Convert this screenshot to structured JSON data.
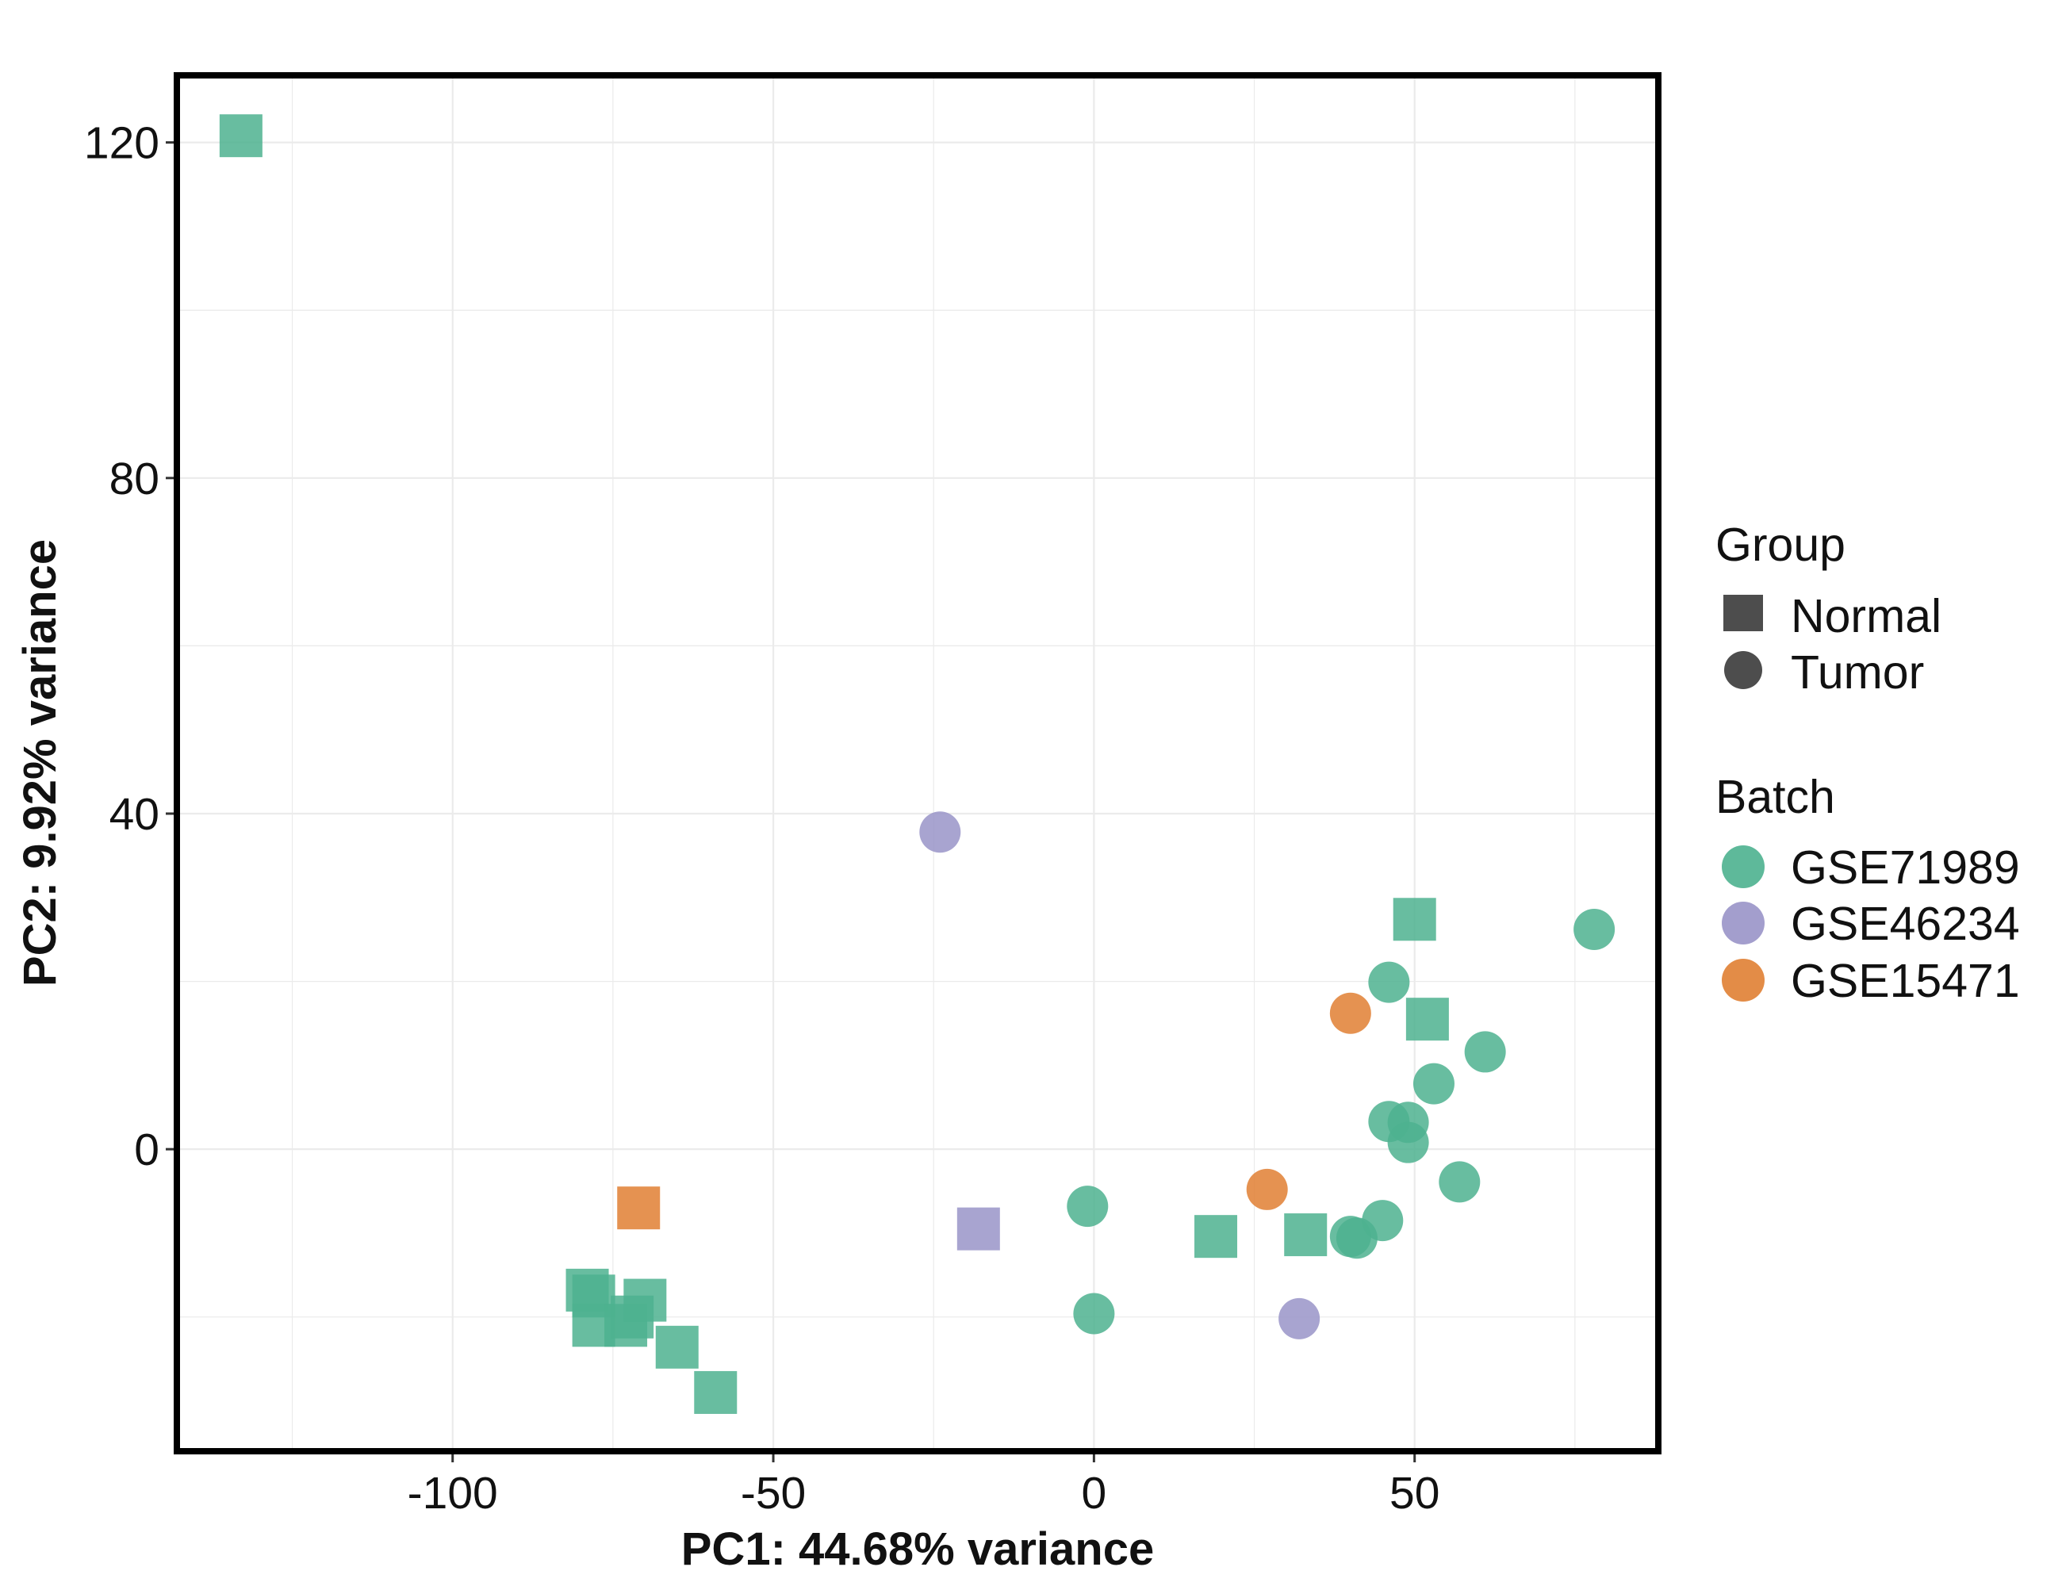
{
  "chart_data": {
    "type": "scatter",
    "title": "",
    "xlabel": "PC1: 44.68% variance",
    "ylabel": "PC2: 9.92% variance",
    "xlim": [
      -143,
      88
    ],
    "ylim": [
      -36,
      128
    ],
    "xticks": [
      -100,
      -50,
      0,
      50
    ],
    "yticks": [
      0,
      40,
      80,
      120
    ],
    "grid": true,
    "legend": {
      "placement": "right",
      "group": {
        "title": "Group",
        "items": [
          {
            "label": "Normal",
            "shape": "square"
          },
          {
            "label": "Tumor",
            "shape": "circle"
          }
        ]
      },
      "batch": {
        "title": "Batch",
        "items": [
          {
            "label": "GSE71989",
            "color": "#4db18f"
          },
          {
            "label": "GSE46234",
            "color": "#9994c8"
          },
          {
            "label": "GSE15471",
            "color": "#e07f33"
          }
        ]
      }
    },
    "colors": {
      "GSE71989": "#4db18f",
      "GSE46234": "#9994c8",
      "GSE15471": "#e07f33"
    },
    "points": [
      {
        "x": -133,
        "y": 120.8,
        "group": "Normal",
        "batch": "GSE71989"
      },
      {
        "x": -79,
        "y": -16.8,
        "group": "Normal",
        "batch": "GSE71989"
      },
      {
        "x": -78,
        "y": -17.5,
        "group": "Normal",
        "batch": "GSE71989"
      },
      {
        "x": -78,
        "y": -21.0,
        "group": "Normal",
        "batch": "GSE71989"
      },
      {
        "x": -73,
        "y": -21.0,
        "group": "Normal",
        "batch": "GSE71989"
      },
      {
        "x": -72,
        "y": -20.0,
        "group": "Normal",
        "batch": "GSE71989"
      },
      {
        "x": -70,
        "y": -18.0,
        "group": "Normal",
        "batch": "GSE71989"
      },
      {
        "x": -65,
        "y": -23.6,
        "group": "Normal",
        "batch": "GSE71989"
      },
      {
        "x": -59,
        "y": -29.0,
        "group": "Normal",
        "batch": "GSE71989"
      },
      {
        "x": -71,
        "y": -7.0,
        "group": "Normal",
        "batch": "GSE15471"
      },
      {
        "x": -18,
        "y": -9.5,
        "group": "Normal",
        "batch": "GSE46234"
      },
      {
        "x": 19,
        "y": -10.4,
        "group": "Normal",
        "batch": "GSE71989"
      },
      {
        "x": 33,
        "y": -10.2,
        "group": "Normal",
        "batch": "GSE71989"
      },
      {
        "x": 50,
        "y": 27.4,
        "group": "Normal",
        "batch": "GSE71989"
      },
      {
        "x": 52,
        "y": 15.5,
        "group": "Normal",
        "batch": "GSE71989"
      },
      {
        "x": -24,
        "y": 37.8,
        "group": "Tumor",
        "batch": "GSE46234"
      },
      {
        "x": 32,
        "y": -20.2,
        "group": "Tumor",
        "batch": "GSE46234"
      },
      {
        "x": 40,
        "y": 16.2,
        "group": "Tumor",
        "batch": "GSE15471"
      },
      {
        "x": 27,
        "y": -4.8,
        "group": "Tumor",
        "batch": "GSE15471"
      },
      {
        "x": -1,
        "y": -6.8,
        "group": "Tumor",
        "batch": "GSE71989"
      },
      {
        "x": 0,
        "y": -19.6,
        "group": "Tumor",
        "batch": "GSE71989"
      },
      {
        "x": 40,
        "y": -10.4,
        "group": "Tumor",
        "batch": "GSE71989"
      },
      {
        "x": 41,
        "y": -10.6,
        "group": "Tumor",
        "batch": "GSE71989"
      },
      {
        "x": 45,
        "y": -8.5,
        "group": "Tumor",
        "batch": "GSE71989"
      },
      {
        "x": 46,
        "y": 3.3,
        "group": "Tumor",
        "batch": "GSE71989"
      },
      {
        "x": 49,
        "y": 3.2,
        "group": "Tumor",
        "batch": "GSE71989"
      },
      {
        "x": 49,
        "y": 0.8,
        "group": "Tumor",
        "batch": "GSE71989"
      },
      {
        "x": 46,
        "y": 19.9,
        "group": "Tumor",
        "batch": "GSE71989"
      },
      {
        "x": 53,
        "y": 7.8,
        "group": "Tumor",
        "batch": "GSE71989"
      },
      {
        "x": 57,
        "y": -3.9,
        "group": "Tumor",
        "batch": "GSE71989"
      },
      {
        "x": 61,
        "y": 11.6,
        "group": "Tumor",
        "batch": "GSE71989"
      },
      {
        "x": 78,
        "y": 26.2,
        "group": "Tumor",
        "batch": "GSE71989"
      }
    ]
  }
}
